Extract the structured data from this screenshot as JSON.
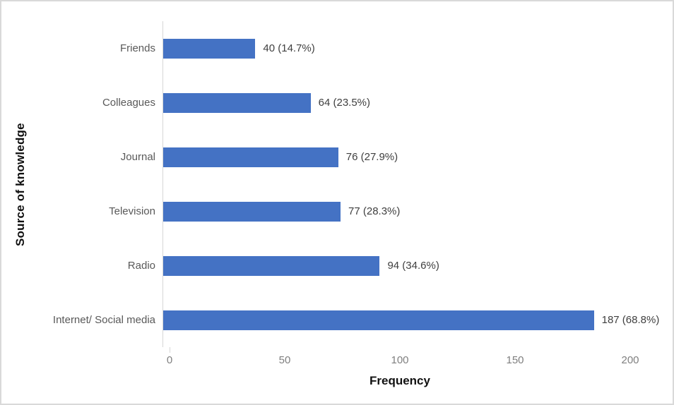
{
  "chart_data": {
    "type": "bar",
    "orientation": "horizontal",
    "title": "",
    "categories": [
      "Friends",
      "Colleagues",
      "Journal",
      "Television",
      "Radio",
      "Internet/ Social media"
    ],
    "values": [
      40,
      64,
      76,
      77,
      94,
      187
    ],
    "percentages": [
      14.7,
      23.5,
      27.9,
      28.3,
      34.6,
      68.8
    ],
    "data_labels": [
      "40 (14.7%)",
      "64 (23.5%)",
      "76 (27.9%)",
      "77 (28.3%)",
      "94 (34.6%)",
      "187 (68.8%)"
    ],
    "xlabel": "Frequency",
    "ylabel": "Source of knowledge",
    "xlim": [
      0,
      200
    ],
    "x_ticks": [
      0,
      50,
      100,
      150,
      200
    ],
    "grid": "off",
    "legend": "none",
    "bar_color": "#4472C4",
    "axis_line_color": "#D6D6D6",
    "figure_border_color": "#D9D9D9"
  }
}
